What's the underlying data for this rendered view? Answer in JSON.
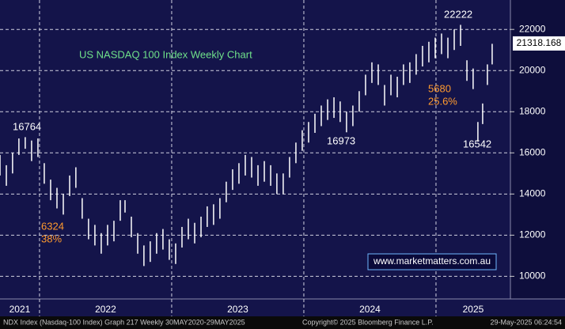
{
  "chart_data": {
    "type": "range_bar",
    "title": "US NASDAQ 100 Index Weekly Chart",
    "source": "www.marketmatters.com.au",
    "footer_left": "NDX Index (Nasdaq-100 Index) Graph 217  Weekly 30MAY2020-29MAY2025",
    "footer_mid": "Copyright© 2025 Bloomberg Finance L.P.",
    "footer_right": "29-May-2025 06:24:54",
    "annotations": [
      "16764",
      "6324",
      "38%",
      "16973",
      "22222",
      "5680",
      "25.6%",
      "16542"
    ],
    "last_price": 21318.168,
    "color": "#ffffff",
    "grid": true,
    "xlim": [
      2021.701,
      2025.563
    ],
    "xticks": [
      2021,
      2022,
      2023,
      2024,
      2025
    ],
    "ylim": [
      8900,
      23430
    ],
    "yticks": [
      10000,
      12000,
      14000,
      16000,
      18000,
      20000,
      22000
    ],
    "x": [
      2021.701,
      2021.749,
      2021.796,
      2021.844,
      2021.892,
      2021.94,
      2021.988,
      2022.036,
      2022.084,
      2022.132,
      2022.18,
      2022.228,
      2022.275,
      2022.323,
      2022.371,
      2022.419,
      2022.467,
      2022.515,
      2022.563,
      2022.611,
      2022.647,
      2022.695,
      2022.743,
      2022.79,
      2022.838,
      2022.886,
      2022.934,
      2022.982,
      2023.03,
      2023.078,
      2023.126,
      2023.174,
      2023.222,
      2023.269,
      2023.317,
      2023.365,
      2023.413,
      2023.461,
      2023.509,
      2023.557,
      2023.605,
      2023.653,
      2023.701,
      2023.749,
      2023.796,
      2023.844,
      2023.892,
      2023.94,
      2023.988,
      2024.036,
      2024.084,
      2024.132,
      2024.18,
      2024.228,
      2024.275,
      2024.323,
      2024.371,
      2024.419,
      2024.467,
      2024.515,
      2024.563,
      2024.611,
      2024.659,
      2024.707,
      2024.754,
      2024.802,
      2024.85,
      2024.898,
      2024.946,
      2024.994,
      2025.042,
      2025.09,
      2025.138,
      2025.186,
      2025.234,
      2025.281,
      2025.317,
      2025.353,
      2025.389,
      2025.425
    ],
    "high": [
      15900,
      15400,
      16000,
      16700,
      16764,
      16600,
      16700,
      15500,
      14700,
      14300,
      14000,
      14900,
      15300,
      13800,
      12800,
      12500,
      12100,
      12500,
      12700,
      13700,
      13700,
      12900,
      12100,
      11500,
      11700,
      12100,
      12300,
      11800,
      11600,
      12400,
      12800,
      12600,
      12900,
      13400,
      13500,
      13800,
      14600,
      15200,
      15500,
      15900,
      15800,
      15400,
      15600,
      15400,
      15000,
      15000,
      15800,
      16500,
      17100,
      17500,
      17900,
      18300,
      18600,
      18700,
      18500,
      18000,
      18300,
      19000,
      19800,
      20400,
      20300,
      19300,
      19800,
      19700,
      20300,
      20400,
      20800,
      21200,
      21400,
      21600,
      21800,
      21600,
      22000,
      22222,
      20500,
      20100,
      17500,
      18400,
      20300,
      21300
    ],
    "low": [
      14900,
      14400,
      15000,
      15900,
      16200,
      15600,
      15800,
      14500,
      13700,
      13300,
      13000,
      13900,
      14300,
      12800,
      11800,
      11500,
      11100,
      11500,
      11700,
      12700,
      13100,
      11900,
      11100,
      10500,
      10700,
      11100,
      11300,
      10800,
      10600,
      11400,
      11800,
      11600,
      11900,
      12400,
      12500,
      12800,
      13600,
      14200,
      14500,
      14900,
      14800,
      14400,
      14600,
      14400,
      14000,
      14000,
      14800,
      15500,
      16100,
      16500,
      16973,
      17300,
      17600,
      17700,
      17500,
      17000,
      17300,
      18000,
      18800,
      19400,
      19300,
      18300,
      18800,
      18700,
      19300,
      19400,
      19800,
      20200,
      20400,
      20600,
      20800,
      20600,
      21000,
      21200,
      19500,
      19100,
      16542,
      17400,
      19300,
      20300
    ]
  }
}
